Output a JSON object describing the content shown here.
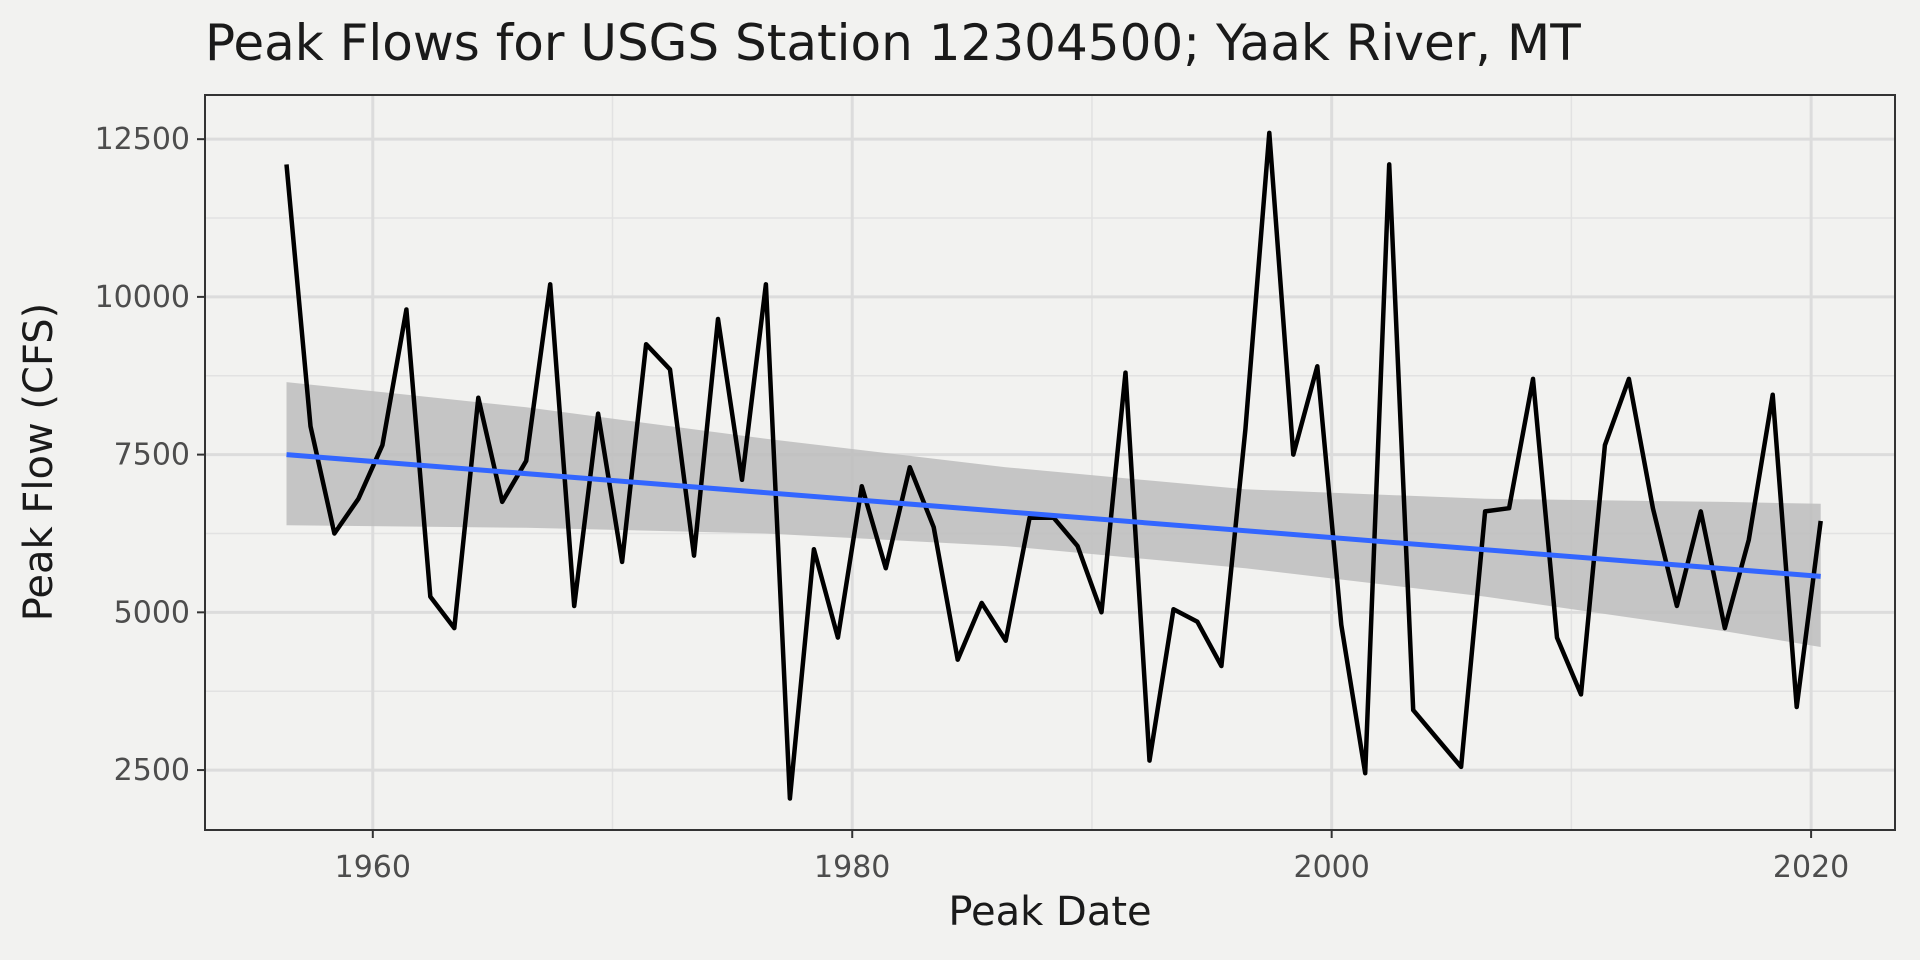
{
  "chart_data": {
    "type": "line",
    "title": "Peak Flows for USGS Station 12304500; Yaak River, MT",
    "xlabel": "Peak Date",
    "ylabel": "Peak Flow (CFS)",
    "xlim": [
      1953,
      2023.5
    ],
    "ylim": [
      1550,
      13200
    ],
    "x_ticks": [
      1960,
      1980,
      2000,
      2020
    ],
    "y_ticks": [
      2500,
      5000,
      7500,
      10000,
      12500
    ],
    "grid": true,
    "legend": "none",
    "series": [
      {
        "color": "#000000",
        "x": [
          1956.4,
          1957.4,
          1958.4,
          1959.4,
          1960.4,
          1961.4,
          1962.4,
          1963.4,
          1964.4,
          1965.4,
          1966.4,
          1967.4,
          1968.4,
          1969.4,
          1970.4,
          1971.4,
          1972.4,
          1973.4,
          1974.4,
          1975.4,
          1976.4,
          1977.4,
          1978.4,
          1979.4,
          1980.4,
          1981.4,
          1982.4,
          1983.4,
          1984.4,
          1985.4,
          1986.4,
          1987.4,
          1988.4,
          1989.4,
          1990.4,
          1991.4,
          1992.4,
          1993.4,
          1994.4,
          1995.4,
          1996.4,
          1997.4,
          1998.4,
          1999.4,
          2000.4,
          2001.4,
          2002.4,
          2003.4,
          2004.4,
          2005.4,
          2006.4,
          2007.4,
          2008.4,
          2009.4,
          2010.4,
          2011.4,
          2012.4,
          2013.4,
          2014.4,
          2015.4,
          2016.4,
          2017.4,
          2018.4,
          2019.4,
          2020.4
        ],
        "y": [
          12100,
          7950,
          6250,
          6800,
          7650,
          9800,
          5250,
          4750,
          8400,
          6750,
          7400,
          10200,
          5100,
          8150,
          5800,
          9250,
          8850,
          5900,
          9650,
          7100,
          10200,
          2050,
          6000,
          4600,
          7000,
          5700,
          7300,
          6350,
          4250,
          5150,
          4550,
          6500,
          6500,
          6050,
          5000,
          8800,
          2650,
          5050,
          4850,
          4150,
          7900,
          12600,
          7500,
          8900,
          4800,
          2450,
          12100,
          3450,
          3000,
          2550,
          6600,
          6650,
          8700,
          4600,
          3700,
          7650,
          8700,
          6650,
          5100,
          6600,
          4750,
          6150,
          8450,
          3500,
          6450
        ]
      }
    ],
    "trend_line": {
      "color": "#3366ff",
      "x": [
        1956.4,
        2020.4
      ],
      "y": [
        7500,
        5570
      ]
    },
    "confidence_band": {
      "color": "#bdbdbd",
      "x": [
        1956.4,
        1966.4,
        1976.4,
        1986.4,
        1996.4,
        2006.4,
        2016.4,
        2020.4
      ],
      "upper": [
        8650,
        8250,
        7750,
        7300,
        6950,
        6800,
        6750,
        6720
      ],
      "lower": [
        6380,
        6340,
        6250,
        6050,
        5700,
        5250,
        4700,
        4450
      ]
    }
  }
}
